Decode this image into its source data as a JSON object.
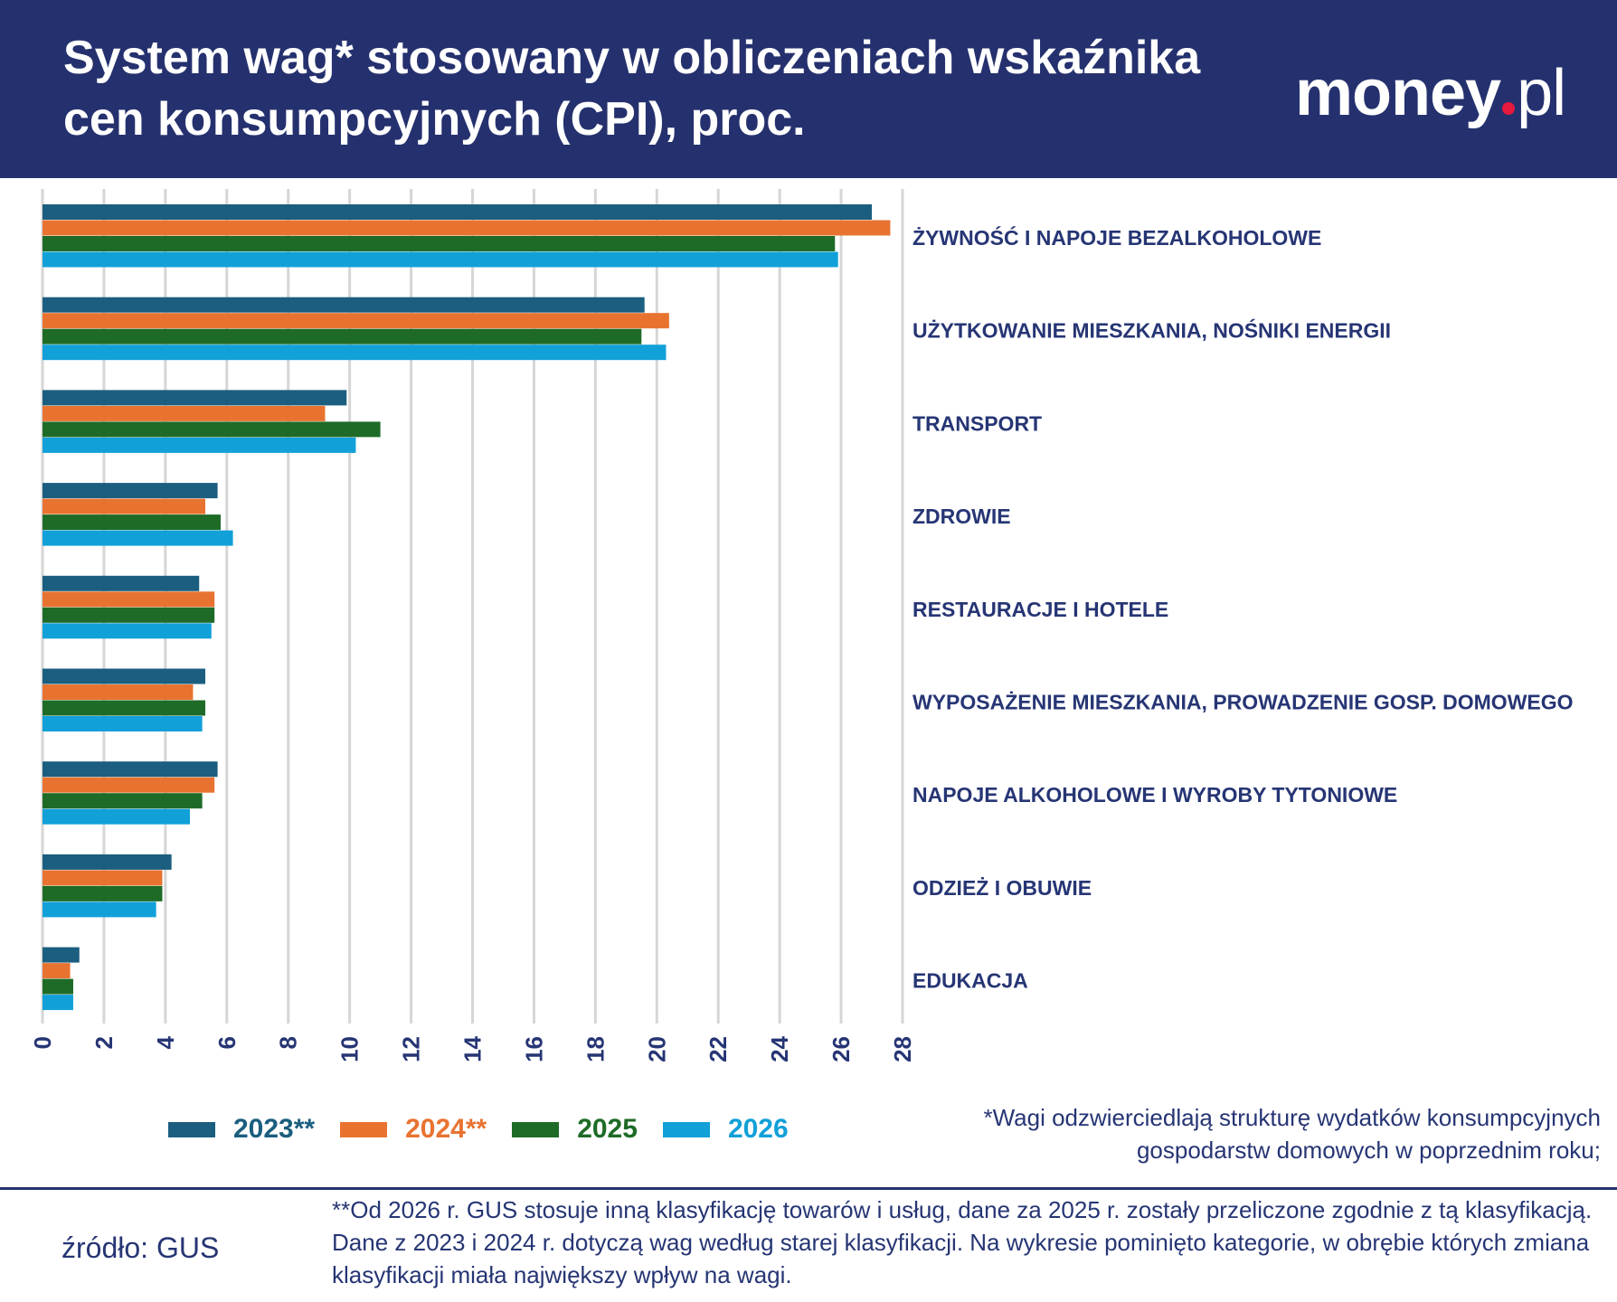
{
  "header": {
    "title_line1": "System wag* stosowany w obliczeniach wskaźnika",
    "title_line2": "cen konsumpcyjnych (CPI), proc.",
    "logo": "money.pl"
  },
  "chart_data": {
    "type": "bar",
    "orientation": "horizontal",
    "categories": [
      "ŻYWNOŚĆ I NAPOJE BEZALKOHOLOWE",
      "UŻYTKOWANIE MIESZKANIA, NOŚNIKI ENERGII",
      "TRANSPORT",
      "ZDROWIE",
      "RESTAURACJE I HOTELE",
      "WYPOSAŻENIE MIESZKANIA, PROWADZENIE GOSP. DOMOWEGO",
      "NAPOJE ALKOHOLOWE I WYROBY TYTONIOWE",
      "ODZIEŻ I OBUWIE",
      "EDUKACJA"
    ],
    "series": [
      {
        "name": "2023**",
        "color": "#1b5e7f",
        "values": [
          27.0,
          19.6,
          9.9,
          5.7,
          5.1,
          5.3,
          5.7,
          4.2,
          1.2
        ]
      },
      {
        "name": "2024**",
        "color": "#e87331",
        "values": [
          27.6,
          20.4,
          9.2,
          5.3,
          5.6,
          4.9,
          5.6,
          3.9,
          0.9
        ]
      },
      {
        "name": "2025",
        "color": "#1e6b27",
        "values": [
          25.8,
          19.5,
          11.0,
          5.8,
          5.6,
          5.3,
          5.2,
          3.9,
          1.0
        ]
      },
      {
        "name": "2026",
        "color": "#12a0d8",
        "values": [
          25.9,
          20.3,
          10.2,
          6.2,
          5.5,
          5.2,
          4.8,
          3.7,
          1.0
        ]
      }
    ],
    "xlim": [
      0,
      28
    ],
    "xticks": [
      "0",
      "2",
      "4",
      "6",
      "8",
      "10",
      "12",
      "14",
      "16",
      "18",
      "20",
      "22",
      "24",
      "26",
      "28"
    ],
    "grid": true,
    "legend": "bottom-left"
  },
  "notes": {
    "weights": "*Wagi odzwierciedlają strukturę wydatków konsumpcyjnych gospodarstw domowych w poprzednim roku;",
    "classification": "**Od 2026 r. GUS stosuje inną klasyfikację towarów i usług, dane za 2025 r. zostały przeliczone zgodnie z tą klasyfikacją. Dane z 2023 i 2024 r. dotyczą wag według starej klasyfikacji. Na wykresie pominięto kategorie, w obrębie których zmiana klasyfikacji miała największy wpływ na wagi.",
    "source": "źródło: GUS"
  }
}
